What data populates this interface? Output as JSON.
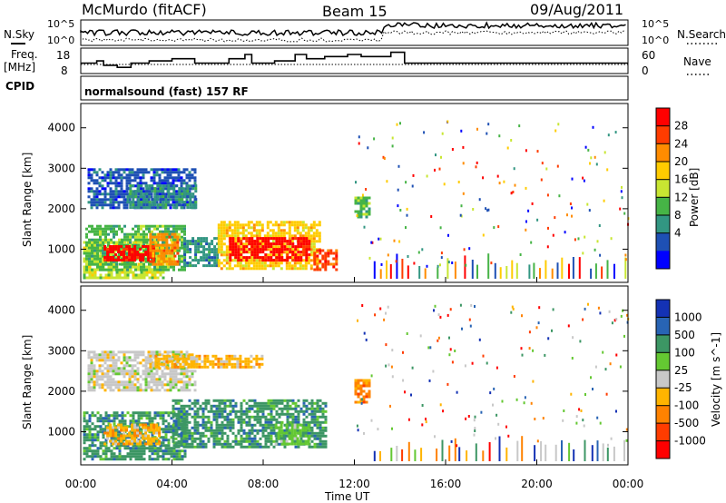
{
  "header": {
    "station": "McMurdo (fitACF)",
    "beam": "Beam 15",
    "date": "09/Aug/2011"
  },
  "noise_panel": {
    "left_label": "N.Sky",
    "right_label": "N.Search",
    "left_ticks": [
      "10^5",
      "10^0"
    ],
    "right_ticks": [
      "10^5",
      "10^0"
    ]
  },
  "freq_panel": {
    "left_label_1": "Freq.",
    "left_label_2": "[MHz]",
    "right_label": "Nave",
    "left_ticks": [
      "18",
      "8"
    ],
    "right_ticks": [
      "60",
      "0"
    ]
  },
  "cpid": {
    "label": "CPID",
    "value": "normalsound (fast) 157 RF"
  },
  "axes": {
    "ylabel": "Slant Range [km]",
    "xlabel": "Time UT",
    "y_ticks": [
      "4000",
      "3000",
      "2000",
      "1000"
    ],
    "x_ticks": [
      "00:00",
      "04:00",
      "08:00",
      "12:00",
      "16:00",
      "20:00",
      "00:00"
    ]
  },
  "power_scale": {
    "label": "Power [dB]",
    "ticks": [
      "28",
      "24",
      "20",
      "16",
      "12",
      "8",
      "4"
    ],
    "colors": [
      "#ff0000",
      "#ff3c00",
      "#ff8c00",
      "#ffcc00",
      "#c8e632",
      "#46b446",
      "#329682",
      "#1e50b4",
      "#0000ff"
    ]
  },
  "velocity_scale": {
    "label": "Velocity [m s^-1]",
    "ticks": [
      "1000",
      "500",
      "100",
      "25",
      "-25",
      "-100",
      "-500",
      "-1000"
    ],
    "colors": [
      "#1432b4",
      "#2864b4",
      "#3c9664",
      "#64c832",
      "#c8c8c8",
      "#ffb400",
      "#ff8200",
      "#ff3c00",
      "#ff0000"
    ]
  },
  "chart_data": {
    "type": "heatmap",
    "x_range_hours": [
      0,
      24
    ],
    "y_range_km": [
      180,
      4600
    ],
    "x_ticks": [
      "00:00",
      "04:00",
      "08:00",
      "12:00",
      "16:00",
      "20:00",
      "00:00"
    ],
    "y_ticks": [
      1000,
      2000,
      3000,
      4000
    ],
    "frequency_steps": [
      {
        "start": 0.0,
        "end": 0.7,
        "mhz": 12
      },
      {
        "start": 0.7,
        "end": 1.0,
        "mhz": 13
      },
      {
        "start": 1.0,
        "end": 1.6,
        "mhz": 11
      },
      {
        "start": 1.6,
        "end": 2.2,
        "mhz": 10
      },
      {
        "start": 2.2,
        "end": 3.0,
        "mhz": 12
      },
      {
        "start": 3.0,
        "end": 4.0,
        "mhz": 13
      },
      {
        "start": 4.0,
        "end": 5.0,
        "mhz": 14
      },
      {
        "start": 5.0,
        "end": 6.5,
        "mhz": 12
      },
      {
        "start": 6.5,
        "end": 7.2,
        "mhz": 14
      },
      {
        "start": 7.2,
        "end": 7.5,
        "mhz": 16
      },
      {
        "start": 7.5,
        "end": 8.5,
        "mhz": 12
      },
      {
        "start": 8.5,
        "end": 9.4,
        "mhz": 13
      },
      {
        "start": 9.4,
        "end": 9.9,
        "mhz": 16
      },
      {
        "start": 9.9,
        "end": 10.7,
        "mhz": 14
      },
      {
        "start": 10.7,
        "end": 11.7,
        "mhz": 15
      },
      {
        "start": 11.7,
        "end": 12.3,
        "mhz": 16
      },
      {
        "start": 12.3,
        "end": 13.6,
        "mhz": 15
      },
      {
        "start": 13.6,
        "end": 14.2,
        "mhz": 17
      },
      {
        "start": 14.2,
        "end": 24.0,
        "mhz": 12
      }
    ],
    "power_regions": [
      {
        "t": [
          0.1,
          3.6
        ],
        "r": [
          300,
          1200
        ],
        "level": 4
      },
      {
        "t": [
          0.2,
          4.6
        ],
        "r": [
          500,
          1600
        ],
        "level": 5
      },
      {
        "t": [
          1.0,
          3.2
        ],
        "r": [
          700,
          1100
        ],
        "level": 0
      },
      {
        "t": [
          3.0,
          4.2
        ],
        "r": [
          600,
          1400
        ],
        "level": 2
      },
      {
        "t": [
          4.5,
          6.0
        ],
        "r": [
          600,
          1300
        ],
        "level": 6
      },
      {
        "t": [
          6.0,
          10.5
        ],
        "r": [
          500,
          1700
        ],
        "level": 3
      },
      {
        "t": [
          6.5,
          10.0
        ],
        "r": [
          700,
          1300
        ],
        "level": 0
      },
      {
        "t": [
          10.2,
          11.2
        ],
        "r": [
          500,
          1000
        ],
        "level": 1
      },
      {
        "t": [
          0.3,
          5.0
        ],
        "r": [
          2000,
          3000
        ],
        "level": 7
      },
      {
        "t": [
          2.0,
          5.0
        ],
        "r": [
          2000,
          2600
        ],
        "level": 6
      },
      {
        "t": [
          12.0,
          12.6
        ],
        "r": [
          1800,
          2300
        ],
        "level": 5
      }
    ],
    "velocity_regions": [
      {
        "t": [
          0.1,
          4.6
        ],
        "r": [
          300,
          1500
        ],
        "level": 2
      },
      {
        "t": [
          1.0,
          3.4
        ],
        "r": [
          700,
          1200
        ],
        "level": 5
      },
      {
        "t": [
          4.0,
          10.8
        ],
        "r": [
          600,
          1800
        ],
        "level": 2
      },
      {
        "t": [
          8.5,
          10.0
        ],
        "r": [
          700,
          1200
        ],
        "level": 3
      },
      {
        "t": [
          0.3,
          5.0
        ],
        "r": [
          2000,
          3000
        ],
        "level": 4
      },
      {
        "t": [
          3.0,
          8.0
        ],
        "r": [
          2600,
          2900
        ],
        "level": 5
      },
      {
        "t": [
          12.0,
          12.6
        ],
        "r": [
          1700,
          2300
        ],
        "level": 6
      }
    ]
  }
}
